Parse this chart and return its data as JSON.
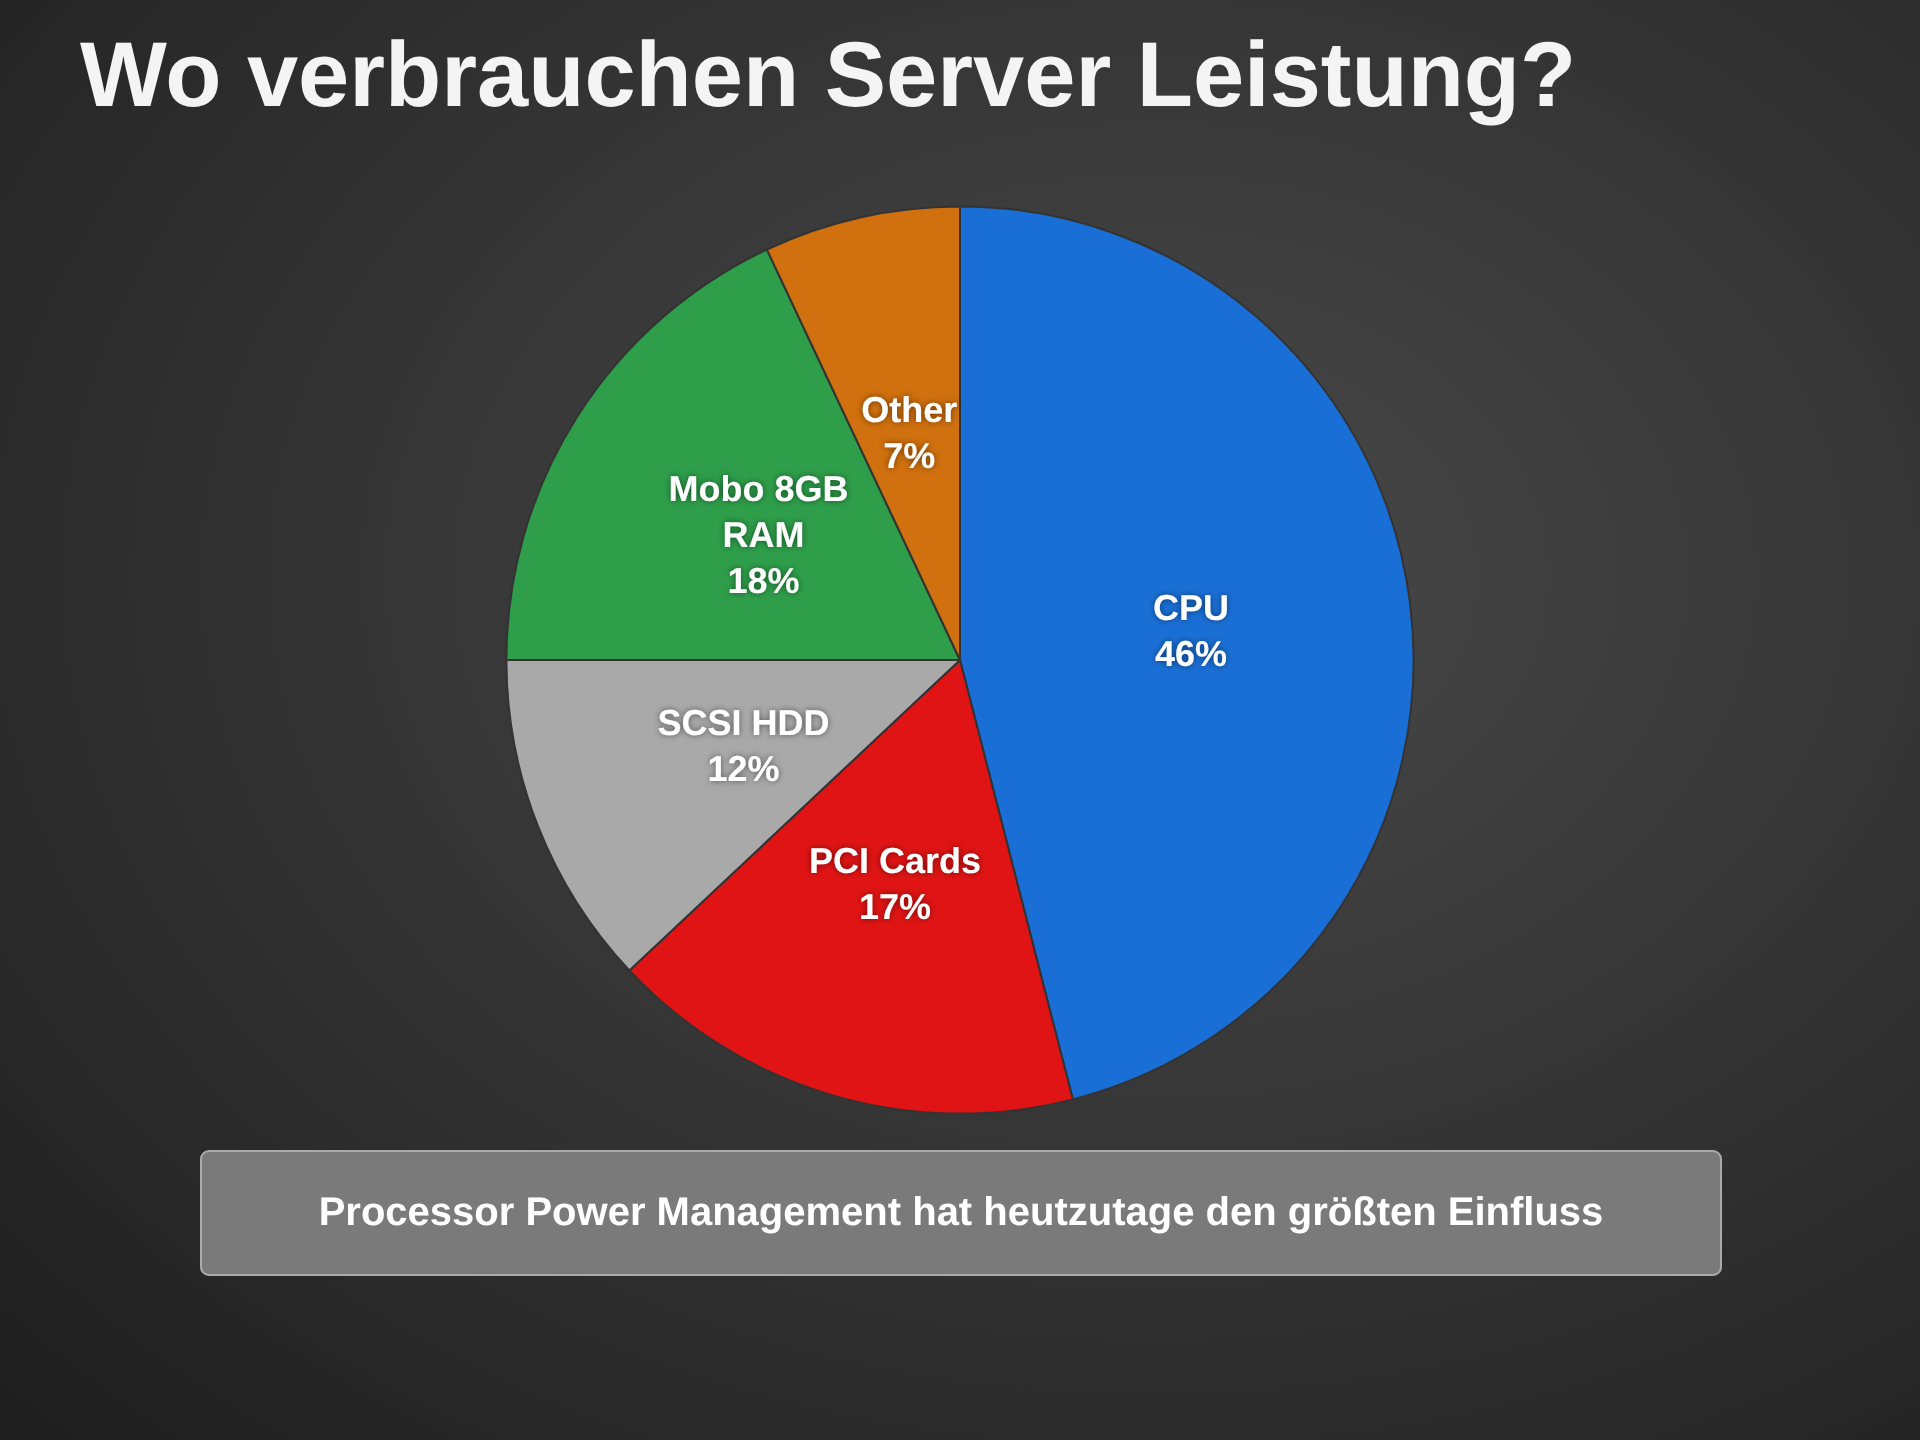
{
  "chart_data": {
    "type": "pie",
    "title": "Wo verbrauchen Server Leistung?",
    "categories": [
      "CPU",
      "PCI Cards",
      "SCSI HDD",
      "Mobo 8GB RAM",
      "Other"
    ],
    "values": [
      46,
      17,
      12,
      18,
      7
    ],
    "value_labels": [
      "46%",
      "17%",
      "12%",
      "18%",
      "7%"
    ],
    "colors": [
      "#1a6fd6",
      "#e01414",
      "#a9a9a9",
      "#2e9e4a",
      "#d0700e"
    ],
    "annotations": [
      "Processor Power Management hat heutzutage den größten Einfluss"
    ],
    "legend": false
  }
}
